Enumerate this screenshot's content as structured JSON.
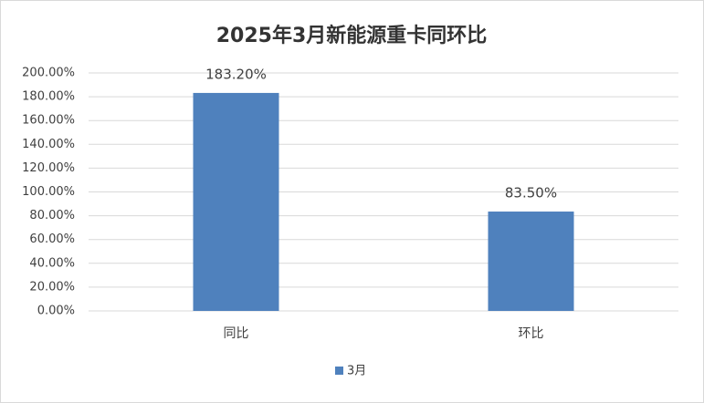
{
  "chart_data": {
    "type": "bar",
    "title": "2025年3月新能源重卡同环比",
    "categories": [
      "同比",
      "环比"
    ],
    "series": [
      {
        "name": "3月",
        "color": "#4f81bd",
        "values": [
          183.2,
          83.5
        ],
        "value_labels": [
          "183.20%",
          "83.50%"
        ]
      }
    ],
    "ylim": [
      0,
      200
    ],
    "yticks": [
      {
        "value": 0,
        "label": "0.00%"
      },
      {
        "value": 20,
        "label": "20.00%"
      },
      {
        "value": 40,
        "label": "40.00%"
      },
      {
        "value": 60,
        "label": "60.00%"
      },
      {
        "value": 80,
        "label": "80.00%"
      },
      {
        "value": 100,
        "label": "100.00%"
      },
      {
        "value": 120,
        "label": "120.00%"
      },
      {
        "value": 140,
        "label": "140.00%"
      },
      {
        "value": 160,
        "label": "160.00%"
      },
      {
        "value": 180,
        "label": "180.00%"
      },
      {
        "value": 200,
        "label": "200.00%"
      }
    ],
    "grid": true,
    "legend": "bottom"
  }
}
